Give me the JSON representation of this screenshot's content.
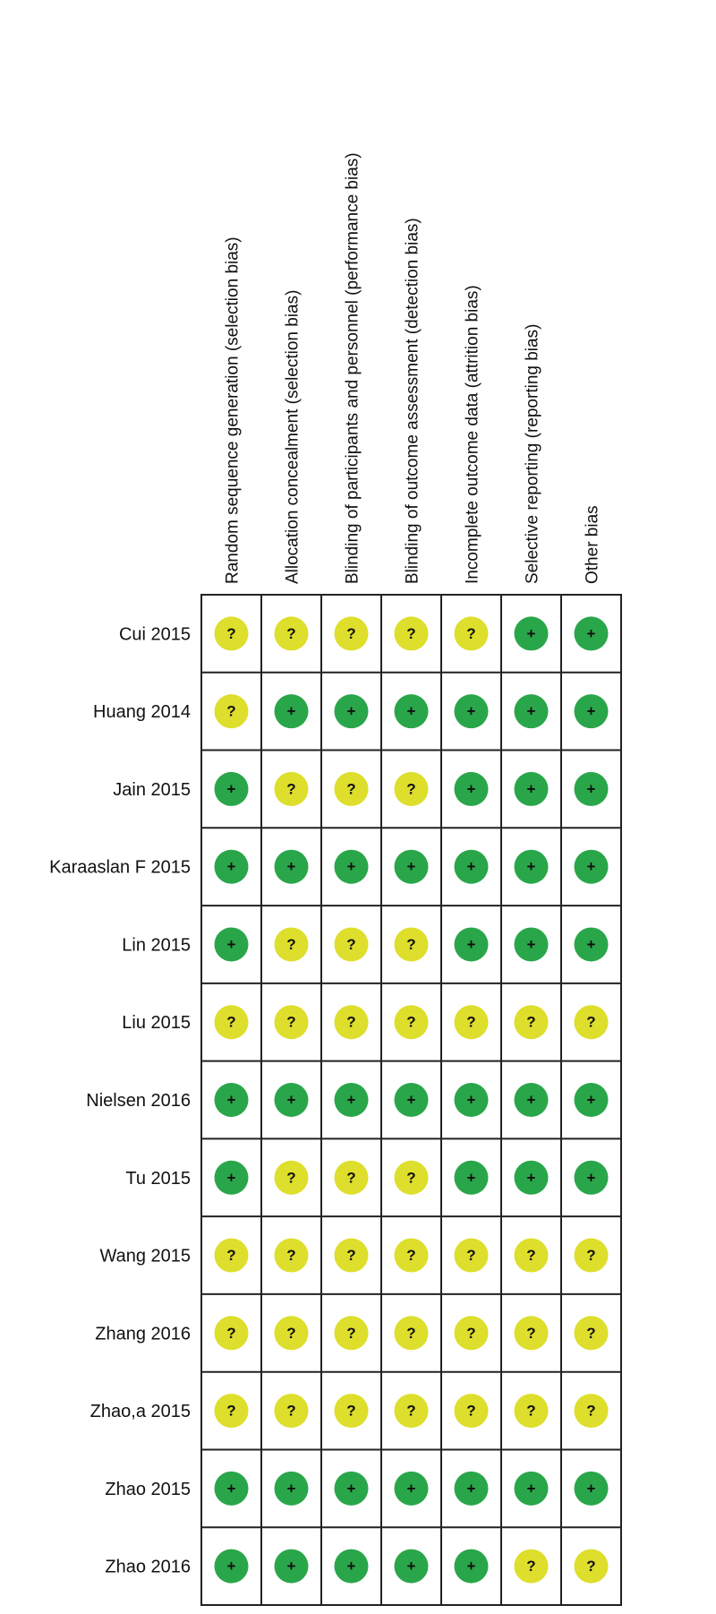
{
  "columns": [
    "Random sequence generation (selection bias)",
    "Allocation concealment (selection bias)",
    "Blinding of participants and personnel (performance bias)",
    "Blinding of outcome assessment (detection bias)",
    "Incomplete outcome data (attrition bias)",
    "Selective reporting (reporting bias)",
    "Other bias"
  ],
  "colors": {
    "+": "#2aa64a",
    "?": "#dede2c"
  },
  "rows": [
    {
      "study": "Cui 2015",
      "ratings": [
        "?",
        "?",
        "?",
        "?",
        "?",
        "+",
        "+"
      ]
    },
    {
      "study": "Huang 2014",
      "ratings": [
        "?",
        "+",
        "+",
        "+",
        "+",
        "+",
        "+"
      ]
    },
    {
      "study": "Jain 2015",
      "ratings": [
        "+",
        "?",
        "?",
        "?",
        "+",
        "+",
        "+"
      ]
    },
    {
      "study": "Karaaslan F 2015",
      "ratings": [
        "+",
        "+",
        "+",
        "+",
        "+",
        "+",
        "+"
      ]
    },
    {
      "study": "Lin 2015",
      "ratings": [
        "+",
        "?",
        "?",
        "?",
        "+",
        "+",
        "+"
      ]
    },
    {
      "study": "Liu 2015",
      "ratings": [
        "?",
        "?",
        "?",
        "?",
        "?",
        "?",
        "?"
      ]
    },
    {
      "study": "Nielsen 2016",
      "ratings": [
        "+",
        "+",
        "+",
        "+",
        "+",
        "+",
        "+"
      ]
    },
    {
      "study": "Tu 2015",
      "ratings": [
        "+",
        "?",
        "?",
        "?",
        "+",
        "+",
        "+"
      ]
    },
    {
      "study": "Wang 2015",
      "ratings": [
        "?",
        "?",
        "?",
        "?",
        "?",
        "?",
        "?"
      ]
    },
    {
      "study": "Zhang 2016",
      "ratings": [
        "?",
        "?",
        "?",
        "?",
        "?",
        "?",
        "?"
      ]
    },
    {
      "study": "Zhao,a 2015",
      "ratings": [
        "?",
        "?",
        "?",
        "?",
        "?",
        "?",
        "?"
      ]
    },
    {
      "study": "Zhao 2015",
      "ratings": [
        "+",
        "+",
        "+",
        "+",
        "+",
        "+",
        "+"
      ]
    },
    {
      "study": "Zhao 2016",
      "ratings": [
        "+",
        "+",
        "+",
        "+",
        "+",
        "?",
        "?"
      ]
    }
  ]
}
